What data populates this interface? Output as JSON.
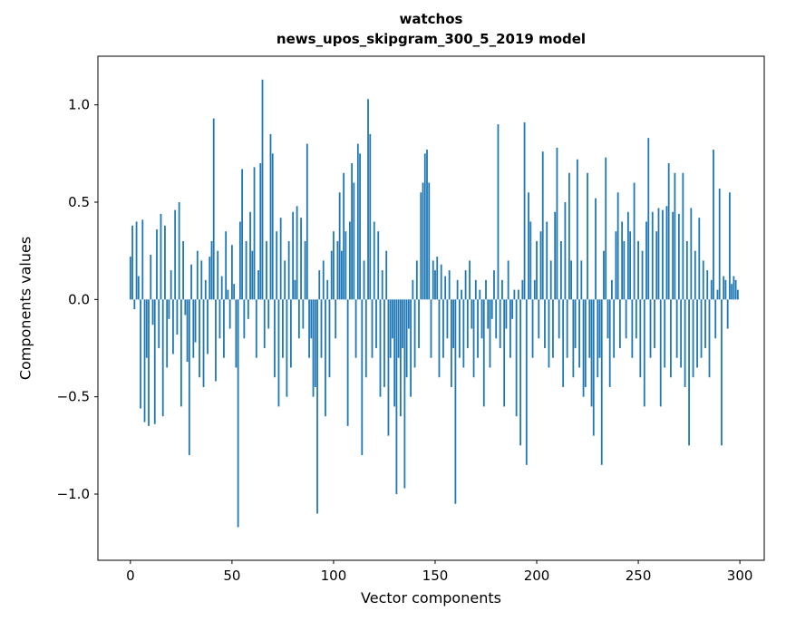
{
  "figure": {
    "title_line1": "watchos",
    "title_line2": "news_upos_skipgram_300_5_2019 model",
    "xlabel": "Vector components",
    "ylabel": "Components values"
  },
  "chart_data": {
    "type": "bar",
    "title": "watchos\nnews_upos_skipgram_300_5_2019 model",
    "xlabel": "Vector components",
    "ylabel": "Components values",
    "bar_color": "#1f77b4",
    "axis_color": "#000000",
    "grid": false,
    "legend": false,
    "x_start": 0,
    "xlim": [
      -16,
      312
    ],
    "ylim": [
      -1.34,
      1.25
    ],
    "xticks": [
      0,
      50,
      100,
      150,
      200,
      250,
      300
    ],
    "xtick_labels": [
      "0",
      "50",
      "100",
      "150",
      "200",
      "250",
      "300"
    ],
    "yticks": [
      -1.0,
      -0.5,
      0.0,
      0.5,
      1.0
    ],
    "ytick_labels": [
      "−1.0",
      "−0.5",
      "0.0",
      "0.5",
      "1.0"
    ],
    "values": [
      0.22,
      0.38,
      -0.05,
      0.4,
      0.12,
      -0.56,
      0.41,
      -0.63,
      -0.3,
      -0.65,
      0.23,
      -0.13,
      -0.64,
      0.36,
      -0.25,
      0.44,
      -0.6,
      0.38,
      -0.35,
      -0.1,
      0.15,
      -0.28,
      0.46,
      -0.18,
      0.5,
      -0.55,
      0.3,
      -0.08,
      -0.32,
      -0.8,
      0.18,
      -0.3,
      -0.22,
      0.25,
      -0.4,
      0.2,
      -0.45,
      0.1,
      -0.28,
      0.22,
      0.3,
      0.93,
      -0.42,
      0.25,
      -0.2,
      0.12,
      -0.3,
      0.35,
      0.05,
      -0.15,
      0.28,
      0.08,
      -0.35,
      -1.17,
      0.4,
      0.67,
      -0.2,
      0.3,
      -0.1,
      0.45,
      0.25,
      0.68,
      -0.3,
      0.15,
      0.7,
      1.13,
      -0.25,
      0.3,
      -0.15,
      0.85,
      0.75,
      -0.4,
      0.35,
      -0.55,
      0.42,
      -0.3,
      0.2,
      -0.5,
      0.3,
      -0.35,
      0.45,
      0.1,
      0.48,
      -0.2,
      0.42,
      -0.15,
      0.3,
      0.8,
      -0.3,
      -0.2,
      -0.5,
      -0.45,
      -1.1,
      0.15,
      -0.3,
      0.2,
      -0.6,
      0.1,
      -0.4,
      0.25,
      0.35,
      -0.2,
      0.3,
      0.55,
      0.25,
      0.65,
      0.35,
      -0.65,
      0.4,
      0.7,
      0.6,
      -0.3,
      0.8,
      0.75,
      -0.8,
      0.2,
      -0.4,
      1.03,
      0.85,
      -0.3,
      0.4,
      -0.25,
      0.35,
      -0.5,
      0.15,
      -0.45,
      0.25,
      -0.7,
      -0.3,
      -0.2,
      -0.55,
      -1.0,
      -0.3,
      -0.6,
      -0.25,
      -0.97,
      -0.4,
      -0.15,
      -0.5,
      0.1,
      -0.35,
      0.2,
      -0.25,
      0.55,
      0.6,
      0.75,
      0.77,
      0.6,
      -0.3,
      0.2,
      0.15,
      0.22,
      -0.4,
      0.18,
      -0.3,
      0.12,
      -0.2,
      0.15,
      -0.45,
      -0.25,
      -1.05,
      0.1,
      -0.3,
      0.05,
      -0.35,
      0.15,
      -0.25,
      0.2,
      -0.15,
      -0.4,
      0.1,
      -0.3,
      0.05,
      -0.2,
      -0.55,
      0.1,
      -0.15,
      -0.35,
      -0.1,
      0.15,
      -0.2,
      0.9,
      -0.25,
      0.1,
      -0.55,
      -0.15,
      0.2,
      -0.3,
      -0.1,
      0.05,
      -0.6,
      0.05,
      -0.75,
      0.1,
      0.91,
      -0.85,
      0.55,
      0.4,
      -0.3,
      0.1,
      0.3,
      -0.2,
      0.35,
      0.76,
      -0.25,
      0.4,
      -0.35,
      0.2,
      -0.3,
      0.45,
      0.78,
      -0.2,
      0.3,
      -0.45,
      0.5,
      -0.3,
      0.65,
      0.2,
      -0.4,
      -0.25,
      0.72,
      -0.35,
      0.2,
      -0.5,
      -0.45,
      0.65,
      -0.3,
      -0.55,
      -0.7,
      0.52,
      -0.4,
      -0.3,
      -0.85,
      0.25,
      0.73,
      -0.2,
      -0.45,
      0.1,
      -0.3,
      0.35,
      0.55,
      -0.25,
      0.4,
      0.3,
      -0.2,
      0.45,
      0.35,
      -0.3,
      0.6,
      -0.2,
      0.3,
      -0.4,
      0.25,
      -0.55,
      0.4,
      0.83,
      -0.3,
      0.45,
      -0.25,
      0.35,
      0.47,
      -0.55,
      0.46,
      -0.35,
      0.48,
      0.7,
      -0.4,
      0.45,
      0.65,
      -0.3,
      0.44,
      -0.35,
      0.65,
      -0.45,
      0.3,
      -0.75,
      0.47,
      -0.4,
      0.25,
      -0.35,
      0.42,
      -0.3,
      0.2,
      -0.25,
      0.15,
      -0.4,
      0.1,
      0.77,
      -0.2,
      0.05,
      0.57,
      -0.75,
      0.12,
      0.1,
      -0.15,
      0.55,
      0.08,
      0.12,
      0.1,
      0.05
    ]
  }
}
